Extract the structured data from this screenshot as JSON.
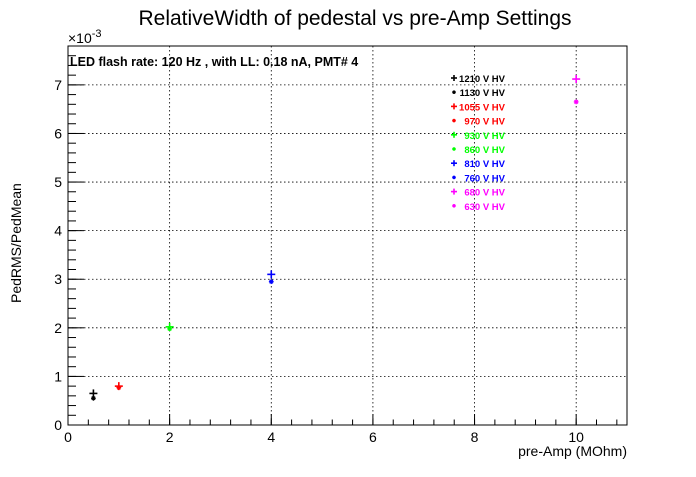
{
  "chart_data": {
    "type": "scatter",
    "title": "RelativeWidth of pedestal vs pre-Amp Settings",
    "annotation": "LED flash rate: 120 Hz , with LL: 0.18 nA, PMT# 4",
    "xlabel": "pre-Amp (MOhm)",
    "ylabel": "PedRMS/PedMean",
    "y_exponent_label": "×10",
    "y_exponent_power": "-3",
    "xlim": [
      0,
      11
    ],
    "ylim": [
      0,
      7.8
    ],
    "y_scale": "×10^-3",
    "x_ticks": [
      "0",
      "2",
      "4",
      "6",
      "8",
      "10"
    ],
    "y_ticks": [
      "0",
      "1",
      "2",
      "3",
      "4",
      "5",
      "6",
      "7"
    ],
    "grid": true,
    "legend_position": "top-right",
    "series": [
      {
        "name": "1210 V HV",
        "color": "#000000",
        "marker": "plus",
        "points": [
          [
            0.5,
            0.65
          ]
        ]
      },
      {
        "name": "1130 V HV",
        "color": "#000000",
        "marker": "star",
        "points": [
          [
            0.5,
            0.55
          ]
        ]
      },
      {
        "name": "1055 V HV",
        "color": "#ff0000",
        "marker": "plus",
        "points": [
          [
            1.0,
            0.8
          ]
        ]
      },
      {
        "name": "970 V HV",
        "color": "#ff0000",
        "marker": "star",
        "points": [
          [
            1.0,
            0.77
          ]
        ]
      },
      {
        "name": "930 V HV",
        "color": "#00ff00",
        "marker": "plus",
        "points": [
          [
            2.0,
            2.02
          ]
        ]
      },
      {
        "name": "860 V HV",
        "color": "#00ff00",
        "marker": "star",
        "points": [
          [
            2.0,
            1.98
          ]
        ]
      },
      {
        "name": "810 V HV",
        "color": "#0000ff",
        "marker": "plus",
        "points": [
          [
            4.0,
            3.1
          ]
        ]
      },
      {
        "name": "760 V HV",
        "color": "#0000ff",
        "marker": "star",
        "points": [
          [
            4.0,
            2.95
          ]
        ]
      },
      {
        "name": "680 V HV",
        "color": "#ff00ff",
        "marker": "plus",
        "points": [
          [
            10.0,
            7.12
          ]
        ]
      },
      {
        "name": "630 V HV",
        "color": "#ff00ff",
        "marker": "star",
        "points": [
          [
            10.0,
            6.65
          ]
        ]
      }
    ]
  }
}
